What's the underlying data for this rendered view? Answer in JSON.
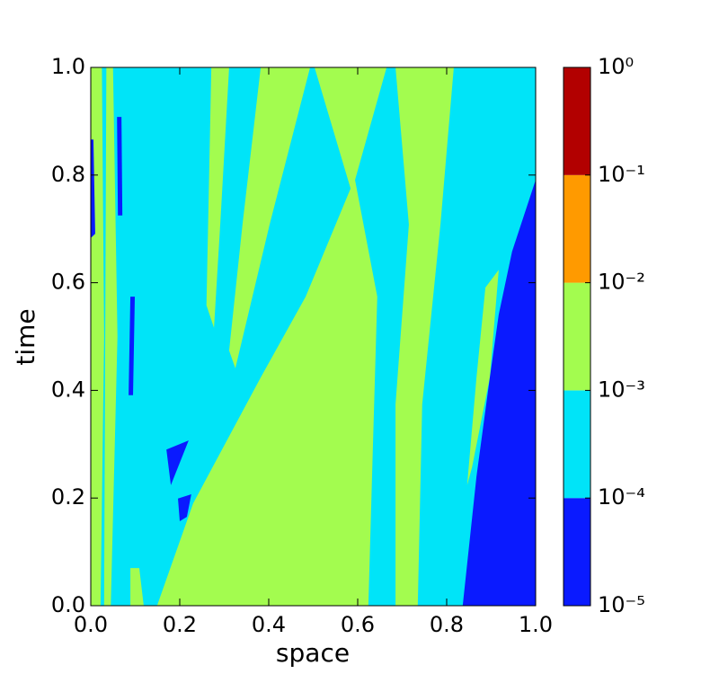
{
  "chart_data": {
    "type": "contourf",
    "xlabel": "space",
    "ylabel": "time",
    "xlim": [
      0,
      1
    ],
    "ylim": [
      0,
      1
    ],
    "xticks": [
      {
        "value": 0,
        "label": "0.0"
      },
      {
        "value": 0.2,
        "label": "0.2"
      },
      {
        "value": 0.4,
        "label": "0.4"
      },
      {
        "value": 0.6,
        "label": "0.6"
      },
      {
        "value": 0.8,
        "label": "0.8"
      },
      {
        "value": 1,
        "label": "1.0"
      }
    ],
    "yticks": [
      {
        "value": 0,
        "label": "0.0"
      },
      {
        "value": 0.2,
        "label": "0.2"
      },
      {
        "value": 0.4,
        "label": "0.4"
      },
      {
        "value": 0.6,
        "label": "0.6"
      },
      {
        "value": 0.8,
        "label": "0.8"
      },
      {
        "value": 1,
        "label": "1.0"
      }
    ],
    "colorbar": {
      "log": true,
      "lim": [
        1e-05,
        1
      ],
      "levels": [
        1e-05,
        0.0001,
        0.001,
        0.01,
        0.1,
        1
      ],
      "colors": [
        "#0a1aff",
        "#00e4f8",
        "#a3fc4f",
        "#ff9a00",
        "#b20000"
      ],
      "ticks": [
        {
          "value": 1,
          "label": "10⁰"
        },
        {
          "value": 0.1,
          "label": "10⁻¹"
        },
        {
          "value": 0.01,
          "label": "10⁻²"
        },
        {
          "value": 0.001,
          "label": "10⁻³"
        },
        {
          "value": 0.0001,
          "label": "10⁻⁴"
        },
        {
          "value": 1e-05,
          "label": "10⁻⁵"
        }
      ]
    },
    "regions": [
      {
        "z": 0.0001,
        "x": [
          0,
          1,
          1,
          0
        ],
        "y": [
          0,
          0,
          1,
          1
        ]
      },
      {
        "z": 0.001,
        "x": [
          0,
          0.022,
          0.03,
          0.025,
          0
        ],
        "y": [
          0,
          0,
          0.5,
          1,
          1
        ]
      },
      {
        "z": 0.001,
        "x": [
          0.035,
          0.05,
          0.06,
          0.045,
          0.03
        ],
        "y": [
          1,
          1,
          0.5,
          0,
          0
        ]
      },
      {
        "z": 0.001,
        "x": [
          0.271,
          0.311,
          0.291,
          0.277,
          0.26
        ],
        "y": [
          1,
          1,
          0.708,
          0.516,
          0.558
        ]
      },
      {
        "z": 0.001,
        "x": [
          0.382,
          0.493,
          0.402,
          0.325,
          0.311,
          0.341
        ],
        "y": [
          1,
          1,
          0.708,
          0.441,
          0.474,
          0.708
        ]
      },
      {
        "z": 0.001,
        "x": [
          0.503,
          0.665,
          0.594,
          0.644,
          0.634,
          0.624,
          0.149,
          0.23,
          0.382,
          0.483,
          0.584
        ],
        "y": [
          1,
          1,
          0.791,
          0.574,
          0.291,
          0,
          0,
          0.19,
          0.424,
          0.574,
          0.775
        ]
      },
      {
        "z": 0.001,
        "x": [
          0.685,
          0.816,
          0.786,
          0.745,
          0.735,
          0.685,
          0.685,
          0.715
        ],
        "y": [
          1,
          1,
          0.708,
          0.374,
          0,
          0,
          0.374,
          0.708
        ]
      },
      {
        "z": 0.001,
        "x": [
          0.887,
          0.917,
          0.897,
          0.857,
          0.846,
          0.867
        ],
        "y": [
          0.591,
          0.624,
          0.424,
          0.257,
          0.224,
          0.424
        ]
      },
      {
        "z": 0.001,
        "x": [
          0.089,
          0.119,
          0.109,
          0.089
        ],
        "y": [
          0,
          0,
          0.07,
          0.07
        ]
      },
      {
        "z": 1e-05,
        "x": [
          0.836,
          1,
          1,
          0.947,
          0.917,
          0.897,
          0.867
        ],
        "y": [
          0,
          0,
          0.791,
          0.658,
          0.541,
          0.424,
          0.24
        ]
      },
      {
        "z": 1e-05,
        "x": [
          0,
          0.006,
          0.01,
          0
        ],
        "y": [
          0.866,
          0.866,
          0.691,
          0.683
        ]
      },
      {
        "z": 1e-05,
        "x": [
          0.059,
          0.069,
          0.071,
          0.061
        ],
        "y": [
          0.908,
          0.908,
          0.725,
          0.725
        ]
      },
      {
        "z": 1e-05,
        "x": [
          0.089,
          0.099,
          0.095,
          0.085
        ],
        "y": [
          0.574,
          0.574,
          0.391,
          0.391
        ]
      },
      {
        "z": 1e-05,
        "x": [
          0.17,
          0.22,
          0.18
        ],
        "y": [
          0.29,
          0.307,
          0.224
        ]
      },
      {
        "z": 1e-05,
        "x": [
          0.196,
          0.226,
          0.216,
          0.2
        ],
        "y": [
          0.199,
          0.207,
          0.165,
          0.157
        ]
      }
    ]
  }
}
